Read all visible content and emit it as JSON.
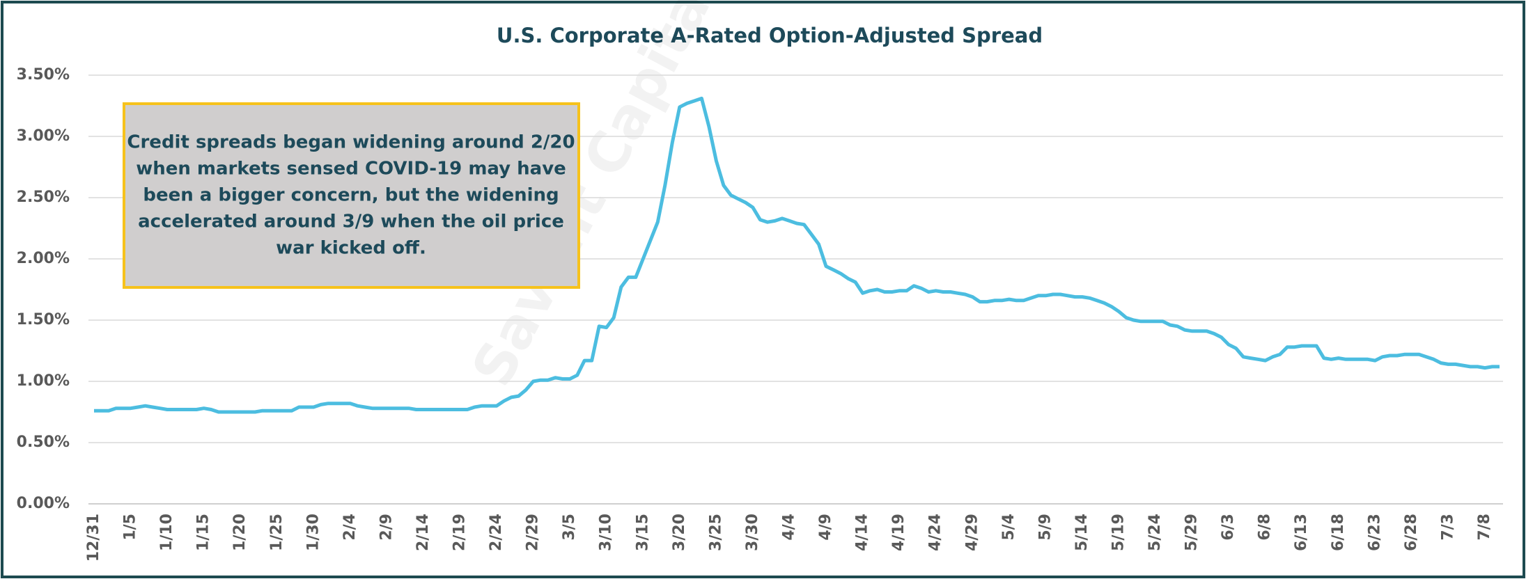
{
  "chart_data": {
    "type": "line",
    "title": "U.S. Corporate A-Rated Option-Adjusted Spread",
    "watermark": "Savant Capital",
    "annotation": [
      "Credit spreads began widening around 2/20",
      "when markets sensed COVID-19 may have",
      "been a bigger concern, but the widening",
      "accelerated around 3/9 when the oil price",
      "war kicked off."
    ],
    "categories": [
      "12/31",
      null,
      null,
      null,
      null,
      "1/5",
      null,
      null,
      null,
      null,
      "1/10",
      null,
      null,
      null,
      null,
      "1/15",
      null,
      null,
      null,
      null,
      "1/20",
      null,
      null,
      null,
      null,
      "1/25",
      null,
      null,
      null,
      null,
      "1/30",
      null,
      null,
      null,
      null,
      "2/4",
      null,
      null,
      null,
      null,
      "2/9",
      null,
      null,
      null,
      null,
      "2/14",
      null,
      null,
      null,
      null,
      "2/19",
      null,
      null,
      null,
      null,
      "2/24",
      null,
      null,
      null,
      null,
      "2/29",
      null,
      null,
      null,
      null,
      "3/5",
      null,
      null,
      null,
      null,
      "3/10",
      null,
      null,
      null,
      null,
      "3/15",
      null,
      null,
      null,
      null,
      "3/20",
      null,
      null,
      null,
      null,
      "3/25",
      null,
      null,
      null,
      null,
      "3/30",
      null,
      null,
      null,
      null,
      "4/4",
      null,
      null,
      null,
      null,
      "4/9",
      null,
      null,
      null,
      null,
      "4/14",
      null,
      null,
      null,
      null,
      "4/19",
      null,
      null,
      null,
      null,
      "4/24",
      null,
      null,
      null,
      null,
      "4/29",
      null,
      null,
      null,
      null,
      "5/4",
      null,
      null,
      null,
      null,
      "5/9",
      null,
      null,
      null,
      null,
      "5/14",
      null,
      null,
      null,
      null,
      "5/19",
      null,
      null,
      null,
      null,
      "5/24",
      null,
      null,
      null,
      null,
      "5/29",
      null,
      null,
      null,
      null,
      "6/3",
      null,
      null,
      null,
      null,
      "6/8",
      null,
      null,
      null,
      null,
      "6/13",
      null,
      null,
      null,
      null,
      "6/18",
      null,
      null,
      null,
      null,
      "6/23",
      null,
      null,
      null,
      null,
      "6/28",
      null,
      null,
      null,
      null,
      "7/3",
      null,
      null,
      null,
      null,
      "7/8",
      null,
      null
    ],
    "series": [
      {
        "color": "#4cbde0",
        "values": [
          0.76,
          0.76,
          0.76,
          0.78,
          0.78,
          0.78,
          0.79,
          0.8,
          0.79,
          0.78,
          0.77,
          0.77,
          0.77,
          0.77,
          0.77,
          0.78,
          0.77,
          0.75,
          0.75,
          0.75,
          0.75,
          0.75,
          0.75,
          0.76,
          0.76,
          0.76,
          0.76,
          0.76,
          0.79,
          0.79,
          0.79,
          0.81,
          0.82,
          0.82,
          0.82,
          0.82,
          0.8,
          0.79,
          0.78,
          0.78,
          0.78,
          0.78,
          0.78,
          0.78,
          0.77,
          0.77,
          0.77,
          0.77,
          0.77,
          0.77,
          0.77,
          0.77,
          0.79,
          0.8,
          0.8,
          0.8,
          0.84,
          0.87,
          0.88,
          0.93,
          1.0,
          1.01,
          1.01,
          1.03,
          1.02,
          1.02,
          1.05,
          1.17,
          1.17,
          1.45,
          1.44,
          1.52,
          1.77,
          1.85,
          1.85,
          2.0,
          2.15,
          2.3,
          2.6,
          2.95,
          3.24,
          3.27,
          3.29,
          3.31,
          3.08,
          2.8,
          2.6,
          2.52,
          2.49,
          2.46,
          2.42,
          2.32,
          2.3,
          2.31,
          2.33,
          2.31,
          2.29,
          2.28,
          2.2,
          2.12,
          1.94,
          1.91,
          1.88,
          1.84,
          1.81,
          1.72,
          1.74,
          1.75,
          1.73,
          1.73,
          1.74,
          1.74,
          1.78,
          1.76,
          1.73,
          1.74,
          1.73,
          1.73,
          1.72,
          1.71,
          1.69,
          1.65,
          1.65,
          1.66,
          1.66,
          1.67,
          1.66,
          1.66,
          1.68,
          1.7,
          1.7,
          1.71,
          1.71,
          1.7,
          1.69,
          1.69,
          1.68,
          1.66,
          1.64,
          1.61,
          1.57,
          1.52,
          1.5,
          1.49,
          1.49,
          1.49,
          1.49,
          1.46,
          1.45,
          1.42,
          1.41,
          1.41,
          1.41,
          1.39,
          1.36,
          1.3,
          1.27,
          1.2,
          1.19,
          1.18,
          1.17,
          1.2,
          1.22,
          1.28,
          1.28,
          1.29,
          1.29,
          1.29,
          1.19,
          1.18,
          1.19,
          1.18,
          1.18,
          1.18,
          1.18,
          1.17,
          1.2,
          1.21,
          1.21,
          1.22,
          1.22,
          1.22,
          1.2,
          1.18,
          1.15,
          1.14,
          1.14,
          1.13,
          1.12,
          1.12,
          1.11,
          1.12,
          1.12
        ]
      }
    ],
    "ylim": [
      0,
      3.5
    ],
    "yticks": [
      {
        "value": 0,
        "label": "0.00%"
      },
      {
        "value": 0.5,
        "label": "0.50%"
      },
      {
        "value": 1,
        "label": "1.00%"
      },
      {
        "value": 1.5,
        "label": "1.50%"
      },
      {
        "value": 2,
        "label": "2.00%"
      },
      {
        "value": 2.5,
        "label": "2.50%"
      },
      {
        "value": 3,
        "label": "3.00%"
      },
      {
        "value": 3.5,
        "label": "3.50%"
      }
    ],
    "grid": true
  }
}
